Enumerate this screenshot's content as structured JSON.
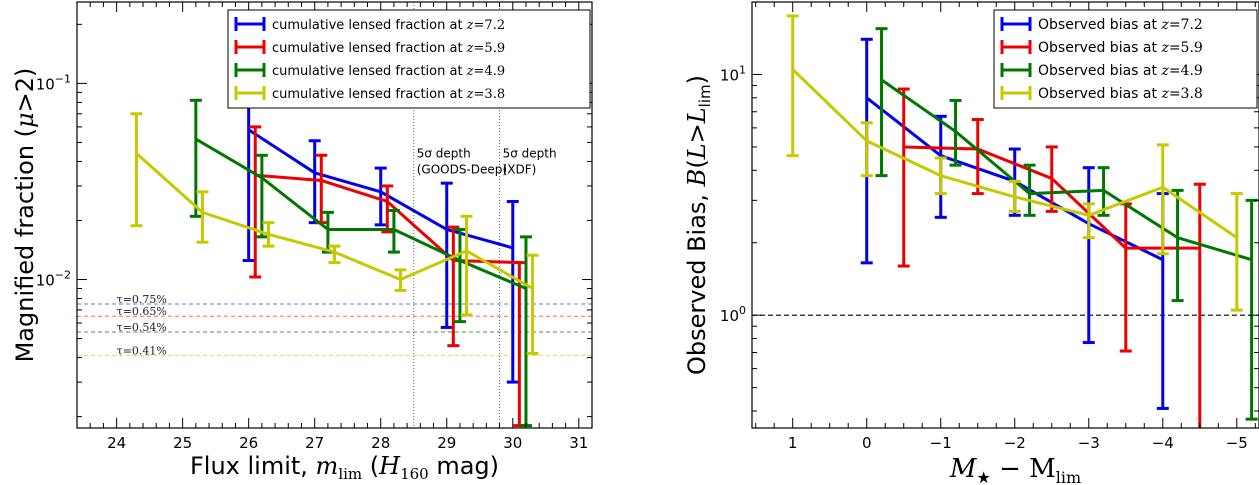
{
  "colors": {
    "z72": "#0000ee",
    "z59": "#ee0000",
    "z49": "#007700",
    "z38": "#c8c800",
    "tau_blue": "#7070ff",
    "tau_red": "#ff6060",
    "tau_green": "#40a040",
    "tau_yellow": "#e0e060"
  },
  "chart_data": [
    {
      "type": "line",
      "xlabel": "Flux limit, m_lim (H_160 mag)",
      "ylabel": "Magnified fraction (μ>2)",
      "xlim": [
        23.4,
        31.2
      ],
      "ylim": [
        0.00175,
        0.26
      ],
      "yscale": "log",
      "x_ticks": [
        "24",
        "25",
        "26",
        "27",
        "28",
        "29",
        "30",
        "31"
      ],
      "y_ticks": [
        "10^-2",
        "10^-1"
      ],
      "legend_position": "top-right",
      "legend": [
        "cumulative lensed fraction at z=7.2",
        "cumulative lensed fraction at z=5.9",
        "cumulative lensed fraction at z=4.9",
        "cumulative lensed fraction at z=3.8"
      ],
      "series": [
        {
          "name": "cumulative lensed fraction at z=7.2",
          "color": "#0000ee",
          "x": [
            26,
            27,
            28,
            29,
            30
          ],
          "y": [
            0.058,
            0.035,
            0.028,
            0.018,
            0.0145
          ],
          "ylo": [
            0.0125,
            0.0195,
            0.019,
            0.0057,
            0.003
          ],
          "yhi": [
            0.105,
            0.051,
            0.037,
            0.031,
            0.025
          ]
        },
        {
          "name": "cumulative lensed fraction at z=5.9",
          "color": "#ee0000",
          "x": [
            26.1,
            27.1,
            28.1,
            29.1,
            30.1
          ],
          "y": [
            0.034,
            0.032,
            0.025,
            0.0125,
            0.0122
          ],
          "ylo": [
            0.0103,
            0.0195,
            0.0175,
            0.0046,
            0.0018
          ],
          "yhi": [
            0.06,
            0.043,
            0.03,
            0.0185,
            0.0122
          ]
        },
        {
          "name": "cumulative lensed fraction at z=4.9",
          "color": "#007700",
          "x": [
            25.2,
            26.2,
            27.2,
            28.2,
            29.2,
            30.2
          ],
          "y": [
            0.052,
            0.033,
            0.018,
            0.018,
            0.0125,
            0.009
          ],
          "ylo": [
            0.021,
            0.0165,
            0.0138,
            0.0138,
            0.0061,
            0.0018
          ],
          "yhi": [
            0.082,
            0.043,
            0.022,
            0.0225,
            0.018,
            0.0165
          ]
        },
        {
          "name": "cumulative lensed fraction at z=3.8",
          "color": "#c8c800",
          "x": [
            24.3,
            25.3,
            26.3,
            27.3,
            28.3,
            29.3,
            30.3
          ],
          "y": [
            0.044,
            0.022,
            0.017,
            0.0138,
            0.01,
            0.014,
            0.009
          ],
          "ylo": [
            0.0188,
            0.0155,
            0.0148,
            0.0122,
            0.0088,
            0.0066,
            0.0042
          ],
          "yhi": [
            0.07,
            0.028,
            0.0195,
            0.0148,
            0.0112,
            0.021,
            0.0133
          ]
        }
      ],
      "tau_lines": [
        {
          "label": "τ=0.75%",
          "value": 0.0075,
          "color": "#7070ff"
        },
        {
          "label": "τ=0.65%",
          "value": 0.0065,
          "color": "#ff6060"
        },
        {
          "label": "τ=0.54%",
          "value": 0.0054,
          "color": "#40a040"
        },
        {
          "label": "τ=0.41%",
          "value": 0.0041,
          "color": "#e0e060"
        }
      ],
      "depth_lines": [
        {
          "x": 28.5,
          "line1": "5σ depth",
          "line2": "(GOODS-Deep)"
        },
        {
          "x": 29.8,
          "line1": "5σ depth",
          "line2": "(XDF)"
        }
      ]
    },
    {
      "type": "line",
      "xlabel": "M★ − M_lim",
      "ylabel": "Observed Bias, B(L>L_lim)",
      "xlim": [
        1.55,
        -5.3
      ],
      "ylim": [
        0.34,
        20
      ],
      "yscale": "log",
      "x_ticks": [
        "1",
        "0",
        "−1",
        "−2",
        "−3",
        "−4",
        "−5"
      ],
      "y_ticks": [
        "10^0",
        "10^1"
      ],
      "reference_line": 1.0,
      "legend_position": "top-right",
      "legend": [
        "Observed bias at z=7.2",
        "Observed bias at z=5.9",
        "Observed bias at z=4.9",
        "Observed bias at z=3.8"
      ],
      "series": [
        {
          "name": "Observed bias at z=7.2",
          "color": "#0000ee",
          "x": [
            0,
            -1,
            -2,
            -3,
            -4
          ],
          "y": [
            8.0,
            4.6,
            3.6,
            2.4,
            1.7
          ],
          "ylo": [
            1.65,
            2.55,
            2.6,
            0.77,
            0.41
          ],
          "yhi": [
            14.0,
            6.7,
            4.9,
            4.1,
            3.2
          ]
        },
        {
          "name": "Observed bias at z=5.9",
          "color": "#ee0000",
          "x": [
            -0.5,
            -1.5,
            -2.5,
            -3.5,
            -4.5
          ],
          "y": [
            5.0,
            4.9,
            3.7,
            1.9,
            1.9
          ],
          "ylo": [
            1.6,
            3.2,
            2.7,
            0.71,
            0.3
          ],
          "yhi": [
            8.7,
            6.5,
            5.0,
            2.9,
            3.5
          ]
        },
        {
          "name": "Observed bias at z=4.9",
          "color": "#007700",
          "x": [
            -0.2,
            -1.2,
            -2.2,
            -3.2,
            -4.2,
            -5.2
          ],
          "y": [
            9.5,
            5.8,
            3.2,
            3.3,
            2.1,
            1.7
          ],
          "ylo": [
            3.8,
            4.2,
            2.6,
            2.6,
            1.15,
            0.37
          ],
          "yhi": [
            15.5,
            7.8,
            4.2,
            4.1,
            3.3,
            3.0
          ]
        },
        {
          "name": "Observed bias at z=3.8",
          "color": "#c8c800",
          "x": [
            1,
            0,
            -1,
            -2,
            -3,
            -4,
            -5
          ],
          "y": [
            10.5,
            5.3,
            3.8,
            3.1,
            2.6,
            3.4,
            2.1
          ],
          "ylo": [
            4.6,
            3.8,
            3.2,
            2.7,
            2.1,
            1.8,
            1.05
          ],
          "yhi": [
            17.5,
            6.3,
            4.5,
            3.6,
            2.9,
            5.1,
            3.2
          ]
        }
      ]
    }
  ]
}
